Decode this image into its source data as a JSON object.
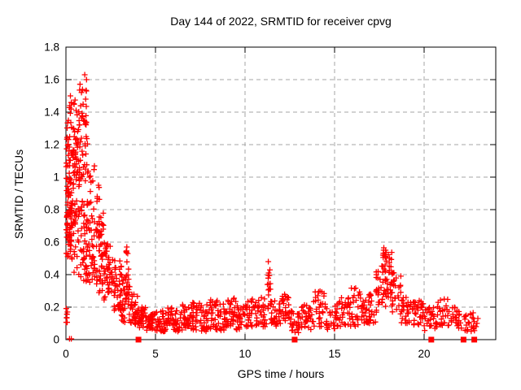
{
  "chart_data": {
    "type": "scatter",
    "title": "Day 144 of 2022, SRMTID for receiver cpvg",
    "xlabel": "GPS time / hours",
    "ylabel": "SRMTID / TECUs",
    "xlim": [
      0,
      24
    ],
    "ylim": [
      0,
      1.8
    ],
    "grid": true,
    "legend": "none",
    "xticks": [
      {
        "v": 0,
        "label": "0"
      },
      {
        "v": 5,
        "label": "5"
      },
      {
        "v": 10,
        "label": "10"
      },
      {
        "v": 15,
        "label": "15"
      },
      {
        "v": 20,
        "label": "20"
      }
    ],
    "yticks": [
      {
        "v": 0,
        "label": "0"
      },
      {
        "v": 0.2,
        "label": "0.2"
      },
      {
        "v": 0.4,
        "label": "0.4"
      },
      {
        "v": 0.6,
        "label": "0.6"
      },
      {
        "v": 0.8,
        "label": "0.8"
      },
      {
        "v": 1,
        "label": "1"
      },
      {
        "v": 1.2,
        "label": "1.2"
      },
      {
        "v": 1.4,
        "label": "1.4"
      },
      {
        "v": 1.6,
        "label": "1.6"
      },
      {
        "v": 1.8,
        "label": "1.8"
      }
    ],
    "colors": {
      "marker": "#ff0000",
      "grid": "#a6a6a6",
      "axis": "#000000"
    },
    "seed": 1337,
    "series": [
      {
        "name": "srmtid",
        "marker": "plus",
        "clusters": [
          [
            0.0,
            0.1,
            8,
            0.08,
            0.22
          ],
          [
            0.0,
            0.35,
            70,
            0.5,
            1.5
          ],
          [
            0.0,
            0.35,
            26,
            0.62,
            1.05
          ],
          [
            0.3,
            0.75,
            60,
            0.4,
            1.3
          ],
          [
            0.35,
            0.75,
            18,
            1.0,
            1.48
          ],
          [
            0.7,
            1.2,
            85,
            0.35,
            1.42
          ],
          [
            0.75,
            1.15,
            12,
            1.3,
            1.58
          ],
          [
            1.2,
            1.6,
            48,
            0.35,
            1.1
          ],
          [
            1.6,
            2.1,
            52,
            0.28,
            0.78
          ],
          [
            1.6,
            1.95,
            6,
            0.8,
            0.95
          ],
          [
            2.1,
            2.6,
            45,
            0.24,
            0.6
          ],
          [
            2.6,
            3.1,
            40,
            0.17,
            0.5
          ],
          [
            3.1,
            3.6,
            30,
            0.1,
            0.4
          ],
          [
            3.32,
            3.52,
            20,
            0.18,
            0.55
          ],
          [
            3.6,
            4.0,
            28,
            0.09,
            0.28
          ],
          [
            4.0,
            4.5,
            30,
            0.06,
            0.2
          ],
          [
            4.5,
            5.0,
            34,
            0.05,
            0.16
          ],
          [
            5.0,
            5.5,
            28,
            0.05,
            0.18
          ],
          [
            5.5,
            6.0,
            28,
            0.05,
            0.2
          ],
          [
            6.0,
            6.5,
            28,
            0.05,
            0.18
          ],
          [
            6.5,
            7.0,
            28,
            0.06,
            0.22
          ],
          [
            7.0,
            7.5,
            28,
            0.06,
            0.24
          ],
          [
            7.5,
            8.0,
            28,
            0.05,
            0.22
          ],
          [
            8.0,
            8.5,
            28,
            0.06,
            0.25
          ],
          [
            8.5,
            9.0,
            28,
            0.05,
            0.22
          ],
          [
            9.0,
            9.5,
            28,
            0.07,
            0.26
          ],
          [
            9.5,
            10.0,
            28,
            0.06,
            0.23
          ],
          [
            10.0,
            10.5,
            28,
            0.07,
            0.27
          ],
          [
            10.5,
            11.2,
            34,
            0.08,
            0.26
          ],
          [
            11.2,
            11.45,
            16,
            0.18,
            0.44
          ],
          [
            11.45,
            12.0,
            30,
            0.08,
            0.26
          ],
          [
            12.0,
            12.5,
            28,
            0.1,
            0.28
          ],
          [
            12.5,
            13.1,
            26,
            0.04,
            0.18
          ],
          [
            13.1,
            13.8,
            30,
            0.06,
            0.22
          ],
          [
            13.8,
            14.5,
            30,
            0.08,
            0.3
          ],
          [
            14.5,
            15.2,
            30,
            0.06,
            0.22
          ],
          [
            15.2,
            15.9,
            30,
            0.08,
            0.28
          ],
          [
            15.9,
            16.6,
            32,
            0.08,
            0.32
          ],
          [
            16.6,
            17.3,
            32,
            0.1,
            0.3
          ],
          [
            17.3,
            17.6,
            20,
            0.15,
            0.45
          ],
          [
            17.6,
            18.2,
            42,
            0.2,
            0.55
          ],
          [
            17.65,
            18.1,
            10,
            0.42,
            0.56
          ],
          [
            18.2,
            18.7,
            26,
            0.15,
            0.42
          ],
          [
            18.7,
            19.3,
            28,
            0.1,
            0.3
          ],
          [
            19.3,
            20.0,
            30,
            0.08,
            0.24
          ],
          [
            20.0,
            20.7,
            28,
            0.05,
            0.2
          ],
          [
            20.7,
            21.4,
            28,
            0.08,
            0.26
          ],
          [
            21.5,
            22.1,
            26,
            0.07,
            0.2
          ],
          [
            22.2,
            22.85,
            24,
            0.05,
            0.17
          ]
        ],
        "points": [
          [
            0.2,
            0.005
          ],
          [
            0.3,
            0.005
          ],
          [
            1.05,
            1.63
          ],
          [
            1.15,
            1.6
          ],
          [
            1.14,
            1.53
          ],
          [
            1.1,
            1.48
          ],
          [
            0.25,
            1.5
          ],
          [
            0.3,
            1.46
          ],
          [
            0.22,
            1.44
          ],
          [
            3.4,
            0.57
          ],
          [
            3.45,
            0.53
          ],
          [
            11.3,
            0.48
          ],
          [
            11.32,
            0.41
          ],
          [
            17.75,
            0.565
          ],
          [
            17.85,
            0.55
          ],
          [
            17.7,
            0.52
          ],
          [
            22.9,
            0.08
          ],
          [
            22.95,
            0.1
          ],
          [
            23.0,
            0.13
          ]
        ]
      },
      {
        "name": "zero-markers",
        "marker": "square",
        "clusters": [],
        "points": [
          [
            4.05,
            0
          ],
          [
            12.77,
            0
          ],
          [
            20.4,
            0
          ],
          [
            22.2,
            0
          ],
          [
            22.8,
            0
          ]
        ]
      }
    ]
  }
}
